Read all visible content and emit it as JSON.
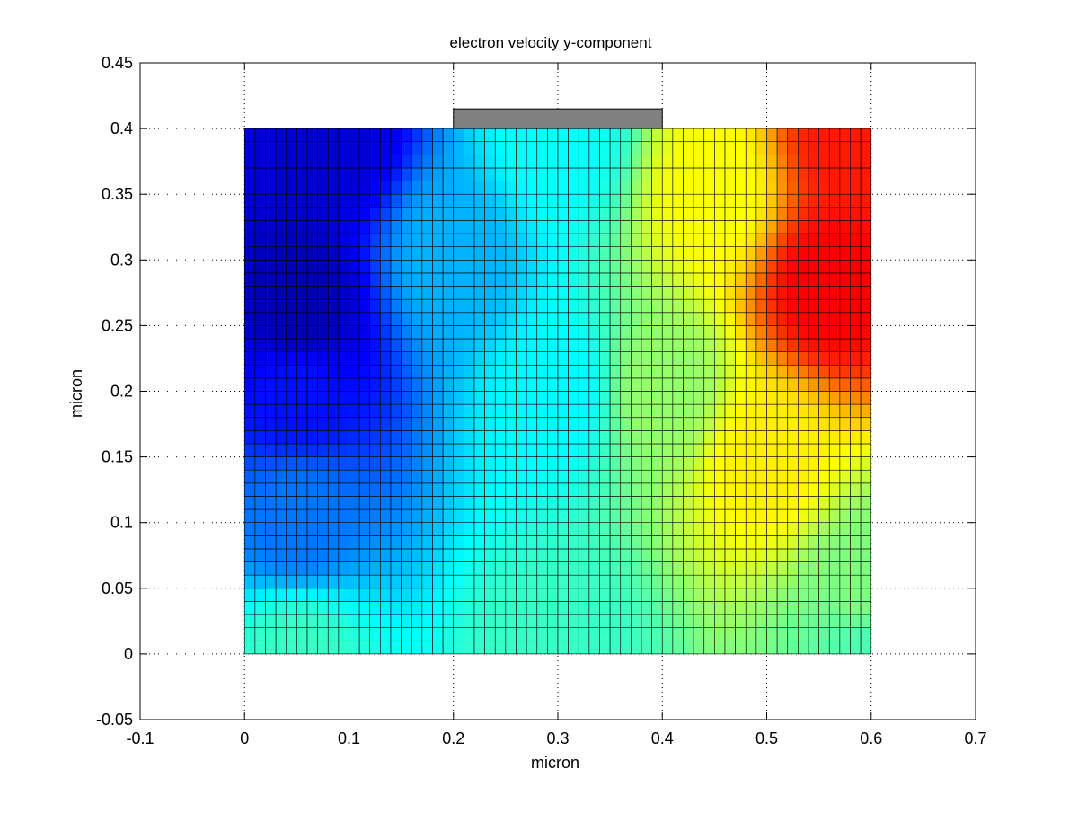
{
  "chart_data": {
    "type": "heatmap",
    "title": "electron velocity y-component",
    "xlabel": "micron",
    "ylabel": "micron",
    "xlim": [
      -0.1,
      0.7
    ],
    "ylim": [
      -0.05,
      0.45
    ],
    "x_ticks": [
      -0.1,
      0,
      0.1,
      0.2,
      0.3,
      0.4,
      0.5,
      0.6,
      0.7
    ],
    "x_tick_labels": [
      "-0.1",
      "0",
      "0.1",
      "0.2",
      "0.3",
      "0.4",
      "0.5",
      "0.6",
      "0.7"
    ],
    "y_ticks": [
      -0.05,
      0,
      0.05,
      0.1,
      0.15,
      0.2,
      0.25,
      0.3,
      0.35,
      0.4,
      0.45
    ],
    "y_tick_labels": [
      "-0.05",
      "0",
      "0.05",
      "0.1",
      "0.15",
      "0.2",
      "0.25",
      "0.3",
      "0.35",
      "0.4",
      "0.45"
    ],
    "grid": true,
    "grid_style": "dotted",
    "colormap": "jet",
    "mesh": {
      "x_range": [
        0,
        0.6
      ],
      "y_range": [
        0,
        0.4
      ],
      "nx": 60,
      "ny": 40,
      "edge_color": "#000000"
    },
    "value_scale": "normalized 0 (dark blue) to 1 (dark red)",
    "field_samples": [
      {
        "x": 0.05,
        "y": 0.26,
        "value": 0.05
      },
      {
        "x": 0.08,
        "y": 0.39,
        "value": 0.08
      },
      {
        "x": 0.05,
        "y": 0.2,
        "value": 0.14
      },
      {
        "x": 0.05,
        "y": 0.1,
        "value": 0.24
      },
      {
        "x": 0.05,
        "y": 0.0,
        "value": 0.43
      },
      {
        "x": 0.2,
        "y": 0.3,
        "value": 0.3
      },
      {
        "x": 0.3,
        "y": 0.2,
        "value": 0.37
      },
      {
        "x": 0.3,
        "y": 0.39,
        "value": 0.38
      },
      {
        "x": 0.3,
        "y": 0.0,
        "value": 0.43
      },
      {
        "x": 0.4,
        "y": 0.2,
        "value": 0.52
      },
      {
        "x": 0.45,
        "y": 0.35,
        "value": 0.62
      },
      {
        "x": 0.5,
        "y": 0.15,
        "value": 0.64
      },
      {
        "x": 0.56,
        "y": 0.28,
        "value": 0.88
      },
      {
        "x": 0.58,
        "y": 0.39,
        "value": 0.85
      },
      {
        "x": 0.6,
        "y": 0.05,
        "value": 0.5
      },
      {
        "x": 0.6,
        "y": 0.0,
        "value": 0.45
      }
    ],
    "annotations": [
      {
        "shape": "rectangle",
        "x_range": [
          0.2,
          0.4
        ],
        "y_range": [
          0.4,
          0.415
        ],
        "color": "#808080",
        "meaning": "gate contact"
      }
    ]
  }
}
